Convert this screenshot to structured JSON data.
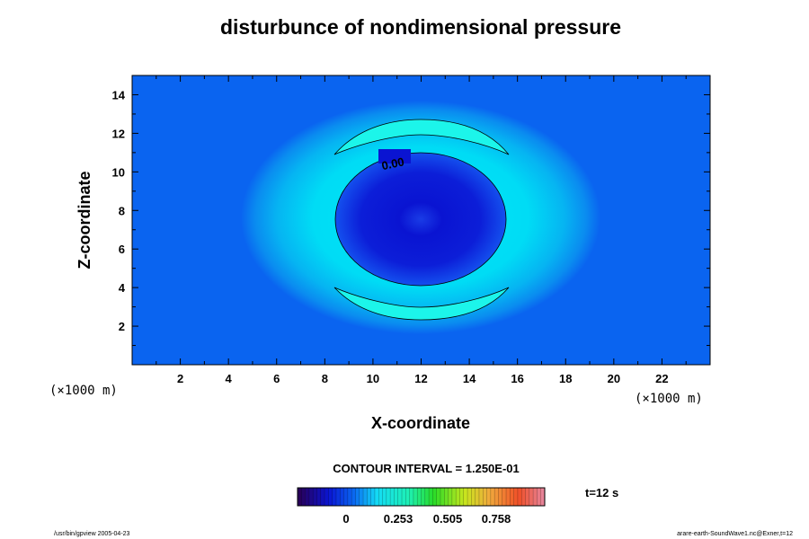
{
  "chart_data": {
    "type": "heatmap",
    "title": "disturbunce of nondimensional pressure",
    "xlabel": "X-coordinate",
    "ylabel": "Z-coordinate",
    "x_unit": "(×1000 m)",
    "y_unit": "(×1000 m)",
    "xlim": [
      0,
      24
    ],
    "ylim": [
      0,
      15
    ],
    "x_ticks": [
      2,
      4,
      6,
      8,
      10,
      12,
      14,
      16,
      18,
      20,
      22
    ],
    "y_ticks": [
      2,
      4,
      6,
      8,
      10,
      12,
      14
    ],
    "background_value": 0.0,
    "field": {
      "center_x": 12,
      "center_z": 7.5,
      "negative_core_radius": 3.4,
      "negative_min": -0.2,
      "positive_ring_radius": 5.0,
      "positive_ring_max": 0.2
    },
    "contour_label": "0.00",
    "contour_interval_text": "CONTOUR INTERVAL = 1.250E-01",
    "colorbar": {
      "tick_labels": [
        "0",
        "0.253",
        "0.505",
        "0.758"
      ],
      "time_label": "t=12 s"
    }
  },
  "footer": {
    "left": "/usr/bin/gpview 2005-04-23",
    "right": "arare-earth-SoundWave1.nc@Exner,t=12"
  },
  "colors": {
    "background_blue": "#0a64f0",
    "core_blue": "#0a14d2",
    "ring_cyan": "#14f0f0"
  }
}
